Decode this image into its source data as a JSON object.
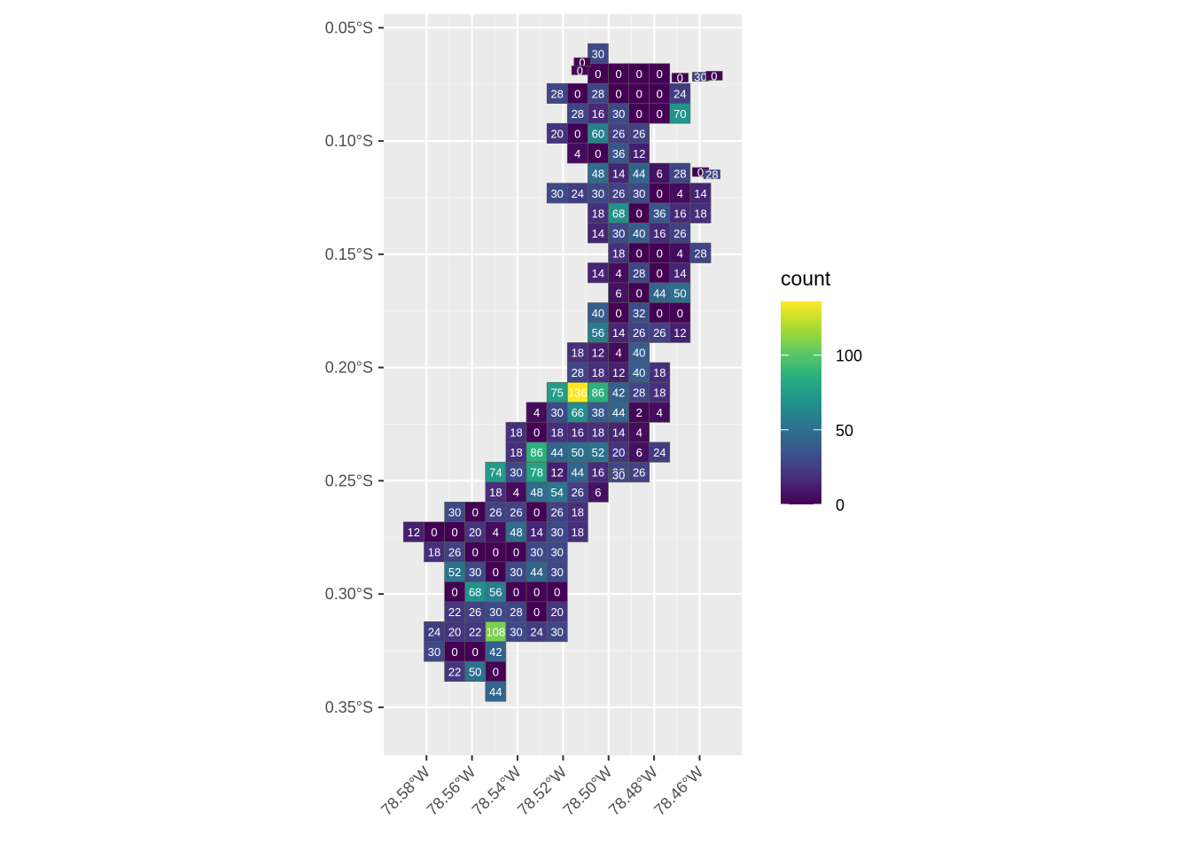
{
  "chart_data": {
    "type": "heatmap",
    "title": "",
    "xlabel": "",
    "ylabel": "",
    "x_ticks": [
      {
        "value": -78.58,
        "label": "78.58°W"
      },
      {
        "value": -78.56,
        "label": "78.56°W"
      },
      {
        "value": -78.54,
        "label": "78.54°W"
      },
      {
        "value": -78.52,
        "label": "78.52°W"
      },
      {
        "value": -78.5,
        "label": "78.50°W"
      },
      {
        "value": -78.48,
        "label": "78.48°W"
      },
      {
        "value": -78.46,
        "label": "78.46°W"
      }
    ],
    "y_ticks": [
      {
        "value": -0.05,
        "label": "0.05°S"
      },
      {
        "value": -0.1,
        "label": "0.10°S"
      },
      {
        "value": -0.15,
        "label": "0.15°S"
      },
      {
        "value": -0.2,
        "label": "0.20°S"
      },
      {
        "value": -0.25,
        "label": "0.25°S"
      },
      {
        "value": -0.3,
        "label": "0.30°S"
      },
      {
        "value": -0.35,
        "label": "0.35°S"
      }
    ],
    "xlim": [
      -78.5988,
      -78.4415
    ],
    "ylim": [
      -0.3712,
      -0.044
    ],
    "grid": true,
    "legend": {
      "title": "count",
      "position": "right",
      "min": 0,
      "max": 136,
      "ticks": [
        0,
        50,
        100
      ],
      "colors": [
        "#440154",
        "#472d7b",
        "#3b528b",
        "#2c728e",
        "#21918c",
        "#28ae80",
        "#5ec962",
        "#addc30",
        "#fde725"
      ]
    },
    "cells": [
      {
        "lon": -78.5046,
        "lat": -0.0614,
        "count": 30
      },
      {
        "lon": -78.5046,
        "lat": -0.0702,
        "count": 0
      },
      {
        "lon": -78.4956,
        "lat": -0.0702,
        "count": 0
      },
      {
        "lon": -78.4866,
        "lat": -0.0702,
        "count": 0
      },
      {
        "lon": -78.4776,
        "lat": -0.0702,
        "count": 0
      },
      {
        "lon": -78.5226,
        "lat": -0.079,
        "count": 28
      },
      {
        "lon": -78.5136,
        "lat": -0.079,
        "count": 0
      },
      {
        "lon": -78.5046,
        "lat": -0.079,
        "count": 28
      },
      {
        "lon": -78.4956,
        "lat": -0.079,
        "count": 0
      },
      {
        "lon": -78.4866,
        "lat": -0.079,
        "count": 0
      },
      {
        "lon": -78.4776,
        "lat": -0.079,
        "count": 0
      },
      {
        "lon": -78.4686,
        "lat": -0.079,
        "count": 24
      },
      {
        "lon": -78.5136,
        "lat": -0.0878,
        "count": 28
      },
      {
        "lon": -78.5046,
        "lat": -0.0878,
        "count": 16
      },
      {
        "lon": -78.4956,
        "lat": -0.0878,
        "count": 30
      },
      {
        "lon": -78.4866,
        "lat": -0.0878,
        "count": 0
      },
      {
        "lon": -78.4776,
        "lat": -0.0878,
        "count": 0
      },
      {
        "lon": -78.4686,
        "lat": -0.0878,
        "count": 70
      },
      {
        "lon": -78.5226,
        "lat": -0.0966,
        "count": 20
      },
      {
        "lon": -78.5136,
        "lat": -0.0966,
        "count": 0
      },
      {
        "lon": -78.5046,
        "lat": -0.0966,
        "count": 60
      },
      {
        "lon": -78.4956,
        "lat": -0.0966,
        "count": 26
      },
      {
        "lon": -78.4866,
        "lat": -0.0966,
        "count": 26
      },
      {
        "lon": -78.5136,
        "lat": -0.1054,
        "count": 4
      },
      {
        "lon": -78.5046,
        "lat": -0.1054,
        "count": 0
      },
      {
        "lon": -78.4956,
        "lat": -0.1054,
        "count": 36
      },
      {
        "lon": -78.4866,
        "lat": -0.1054,
        "count": 12
      },
      {
        "lon": -78.5046,
        "lat": -0.1142,
        "count": 48
      },
      {
        "lon": -78.4956,
        "lat": -0.1142,
        "count": 14
      },
      {
        "lon": -78.4866,
        "lat": -0.1142,
        "count": 44
      },
      {
        "lon": -78.4776,
        "lat": -0.1142,
        "count": 6
      },
      {
        "lon": -78.4686,
        "lat": -0.1142,
        "count": 28
      },
      {
        "lon": -78.5226,
        "lat": -0.123,
        "count": 30
      },
      {
        "lon": -78.5136,
        "lat": -0.123,
        "count": 24
      },
      {
        "lon": -78.5046,
        "lat": -0.123,
        "count": 30
      },
      {
        "lon": -78.4956,
        "lat": -0.123,
        "count": 26
      },
      {
        "lon": -78.4866,
        "lat": -0.123,
        "count": 30
      },
      {
        "lon": -78.4776,
        "lat": -0.123,
        "count": 0
      },
      {
        "lon": -78.4686,
        "lat": -0.123,
        "count": 4
      },
      {
        "lon": -78.4596,
        "lat": -0.123,
        "count": 14
      },
      {
        "lon": -78.5046,
        "lat": -0.1318,
        "count": 18
      },
      {
        "lon": -78.4956,
        "lat": -0.1318,
        "count": 68
      },
      {
        "lon": -78.4866,
        "lat": -0.1318,
        "count": 0
      },
      {
        "lon": -78.4776,
        "lat": -0.1318,
        "count": 36
      },
      {
        "lon": -78.4686,
        "lat": -0.1318,
        "count": 16
      },
      {
        "lon": -78.4596,
        "lat": -0.1318,
        "count": 18
      },
      {
        "lon": -78.5046,
        "lat": -0.1406,
        "count": 14
      },
      {
        "lon": -78.4956,
        "lat": -0.1406,
        "count": 30
      },
      {
        "lon": -78.4866,
        "lat": -0.1406,
        "count": 40
      },
      {
        "lon": -78.4776,
        "lat": -0.1406,
        "count": 16
      },
      {
        "lon": -78.4686,
        "lat": -0.1406,
        "count": 26
      },
      {
        "lon": -78.4956,
        "lat": -0.1494,
        "count": 18
      },
      {
        "lon": -78.4866,
        "lat": -0.1494,
        "count": 0
      },
      {
        "lon": -78.4776,
        "lat": -0.1494,
        "count": 0
      },
      {
        "lon": -78.4686,
        "lat": -0.1494,
        "count": 4
      },
      {
        "lon": -78.4596,
        "lat": -0.1494,
        "count": 28
      },
      {
        "lon": -78.5046,
        "lat": -0.1582,
        "count": 14
      },
      {
        "lon": -78.4956,
        "lat": -0.1582,
        "count": 4
      },
      {
        "lon": -78.4866,
        "lat": -0.1582,
        "count": 28
      },
      {
        "lon": -78.4776,
        "lat": -0.1582,
        "count": 0
      },
      {
        "lon": -78.4686,
        "lat": -0.1582,
        "count": 14
      },
      {
        "lon": -78.4956,
        "lat": -0.167,
        "count": 6
      },
      {
        "lon": -78.4866,
        "lat": -0.167,
        "count": 0
      },
      {
        "lon": -78.4776,
        "lat": -0.167,
        "count": 44
      },
      {
        "lon": -78.4686,
        "lat": -0.167,
        "count": 50
      },
      {
        "lon": -78.5046,
        "lat": -0.1758,
        "count": 40
      },
      {
        "lon": -78.4956,
        "lat": -0.1758,
        "count": 0
      },
      {
        "lon": -78.4866,
        "lat": -0.1758,
        "count": 32
      },
      {
        "lon": -78.4776,
        "lat": -0.1758,
        "count": 0
      },
      {
        "lon": -78.4686,
        "lat": -0.1758,
        "count": 0
      },
      {
        "lon": -78.5046,
        "lat": -0.1846,
        "count": 56
      },
      {
        "lon": -78.4956,
        "lat": -0.1846,
        "count": 14
      },
      {
        "lon": -78.4866,
        "lat": -0.1846,
        "count": 26
      },
      {
        "lon": -78.4776,
        "lat": -0.1846,
        "count": 26
      },
      {
        "lon": -78.4686,
        "lat": -0.1846,
        "count": 12
      },
      {
        "lon": -78.5136,
        "lat": -0.1934,
        "count": 18
      },
      {
        "lon": -78.5046,
        "lat": -0.1934,
        "count": 12
      },
      {
        "lon": -78.4956,
        "lat": -0.1934,
        "count": 4
      },
      {
        "lon": -78.4866,
        "lat": -0.1934,
        "count": 40
      },
      {
        "lon": -78.5136,
        "lat": -0.2022,
        "count": 28
      },
      {
        "lon": -78.5046,
        "lat": -0.2022,
        "count": 18
      },
      {
        "lon": -78.4956,
        "lat": -0.2022,
        "count": 12
      },
      {
        "lon": -78.4866,
        "lat": -0.2022,
        "count": 40
      },
      {
        "lon": -78.4776,
        "lat": -0.2022,
        "count": 18
      },
      {
        "lon": -78.5226,
        "lat": -0.211,
        "count": 75
      },
      {
        "lon": -78.5136,
        "lat": -0.211,
        "count": 136
      },
      {
        "lon": -78.5046,
        "lat": -0.211,
        "count": 86
      },
      {
        "lon": -78.4956,
        "lat": -0.211,
        "count": 42
      },
      {
        "lon": -78.4866,
        "lat": -0.211,
        "count": 28
      },
      {
        "lon": -78.4776,
        "lat": -0.211,
        "count": 18
      },
      {
        "lon": -78.5316,
        "lat": -0.2198,
        "count": 4
      },
      {
        "lon": -78.5226,
        "lat": -0.2198,
        "count": 30
      },
      {
        "lon": -78.5136,
        "lat": -0.2198,
        "count": 66
      },
      {
        "lon": -78.5046,
        "lat": -0.2198,
        "count": 38
      },
      {
        "lon": -78.4956,
        "lat": -0.2198,
        "count": 44
      },
      {
        "lon": -78.4866,
        "lat": -0.2198,
        "count": 2
      },
      {
        "lon": -78.4776,
        "lat": -0.2198,
        "count": 4
      },
      {
        "lon": -78.5406,
        "lat": -0.2286,
        "count": 18
      },
      {
        "lon": -78.5316,
        "lat": -0.2286,
        "count": 0
      },
      {
        "lon": -78.5226,
        "lat": -0.2286,
        "count": 18
      },
      {
        "lon": -78.5136,
        "lat": -0.2286,
        "count": 16
      },
      {
        "lon": -78.5046,
        "lat": -0.2286,
        "count": 18
      },
      {
        "lon": -78.4956,
        "lat": -0.2286,
        "count": 14
      },
      {
        "lon": -78.4866,
        "lat": -0.2286,
        "count": 4
      },
      {
        "lon": -78.5406,
        "lat": -0.2374,
        "count": 18
      },
      {
        "lon": -78.5316,
        "lat": -0.2374,
        "count": 86
      },
      {
        "lon": -78.5226,
        "lat": -0.2374,
        "count": 44
      },
      {
        "lon": -78.5136,
        "lat": -0.2374,
        "count": 50
      },
      {
        "lon": -78.5046,
        "lat": -0.2374,
        "count": 52
      },
      {
        "lon": -78.4956,
        "lat": -0.2374,
        "count": 20
      },
      {
        "lon": -78.4866,
        "lat": -0.2374,
        "count": 6
      },
      {
        "lon": -78.4776,
        "lat": -0.2374,
        "count": 24
      },
      {
        "lon": -78.5496,
        "lat": -0.2462,
        "count": 74
      },
      {
        "lon": -78.5406,
        "lat": -0.2462,
        "count": 30
      },
      {
        "lon": -78.5316,
        "lat": -0.2462,
        "count": 78
      },
      {
        "lon": -78.5226,
        "lat": -0.2462,
        "count": 12
      },
      {
        "lon": -78.5136,
        "lat": -0.2462,
        "count": 44
      },
      {
        "lon": -78.5046,
        "lat": -0.2462,
        "count": 16
      },
      {
        "lon": -78.4956,
        "lat": -0.2462,
        "count": 30
      },
      {
        "lon": -78.4866,
        "lat": -0.2462,
        "count": 26
      },
      {
        "lon": -78.5496,
        "lat": -0.255,
        "count": 18
      },
      {
        "lon": -78.5406,
        "lat": -0.255,
        "count": 4
      },
      {
        "lon": -78.5316,
        "lat": -0.255,
        "count": 48
      },
      {
        "lon": -78.5226,
        "lat": -0.255,
        "count": 54
      },
      {
        "lon": -78.5136,
        "lat": -0.255,
        "count": 26
      },
      {
        "lon": -78.5046,
        "lat": -0.255,
        "count": 6
      },
      {
        "lon": -78.5676,
        "lat": -0.2638,
        "count": 30
      },
      {
        "lon": -78.5586,
        "lat": -0.2638,
        "count": 0
      },
      {
        "lon": -78.5496,
        "lat": -0.2638,
        "count": 26
      },
      {
        "lon": -78.5406,
        "lat": -0.2638,
        "count": 26
      },
      {
        "lon": -78.5316,
        "lat": -0.2638,
        "count": 0
      },
      {
        "lon": -78.5226,
        "lat": -0.2638,
        "count": 26
      },
      {
        "lon": -78.5136,
        "lat": -0.2638,
        "count": 18
      },
      {
        "lon": -78.5856,
        "lat": -0.2726,
        "count": 12
      },
      {
        "lon": -78.5766,
        "lat": -0.2726,
        "count": 0
      },
      {
        "lon": -78.5676,
        "lat": -0.2726,
        "count": 0
      },
      {
        "lon": -78.5586,
        "lat": -0.2726,
        "count": 20
      },
      {
        "lon": -78.5496,
        "lat": -0.2726,
        "count": 4
      },
      {
        "lon": -78.5406,
        "lat": -0.2726,
        "count": 48
      },
      {
        "lon": -78.5316,
        "lat": -0.2726,
        "count": 14
      },
      {
        "lon": -78.5226,
        "lat": -0.2726,
        "count": 30
      },
      {
        "lon": -78.5136,
        "lat": -0.2726,
        "count": 18
      },
      {
        "lon": -78.5766,
        "lat": -0.2814,
        "count": 18
      },
      {
        "lon": -78.5676,
        "lat": -0.2814,
        "count": 26
      },
      {
        "lon": -78.5586,
        "lat": -0.2814,
        "count": 0
      },
      {
        "lon": -78.5496,
        "lat": -0.2814,
        "count": 0
      },
      {
        "lon": -78.5406,
        "lat": -0.2814,
        "count": 0
      },
      {
        "lon": -78.5316,
        "lat": -0.2814,
        "count": 30
      },
      {
        "lon": -78.5226,
        "lat": -0.2814,
        "count": 30
      },
      {
        "lon": -78.5676,
        "lat": -0.2902,
        "count": 52
      },
      {
        "lon": -78.5586,
        "lat": -0.2902,
        "count": 30
      },
      {
        "lon": -78.5496,
        "lat": -0.2902,
        "count": 0
      },
      {
        "lon": -78.5406,
        "lat": -0.2902,
        "count": 30
      },
      {
        "lon": -78.5316,
        "lat": -0.2902,
        "count": 44
      },
      {
        "lon": -78.5226,
        "lat": -0.2902,
        "count": 30
      },
      {
        "lon": -78.5676,
        "lat": -0.299,
        "count": 0
      },
      {
        "lon": -78.5586,
        "lat": -0.299,
        "count": 68
      },
      {
        "lon": -78.5496,
        "lat": -0.299,
        "count": 56
      },
      {
        "lon": -78.5406,
        "lat": -0.299,
        "count": 0
      },
      {
        "lon": -78.5316,
        "lat": -0.299,
        "count": 0
      },
      {
        "lon": -78.5226,
        "lat": -0.299,
        "count": 0
      },
      {
        "lon": -78.5676,
        "lat": -0.3078,
        "count": 22
      },
      {
        "lon": -78.5586,
        "lat": -0.3078,
        "count": 26
      },
      {
        "lon": -78.5496,
        "lat": -0.3078,
        "count": 30
      },
      {
        "lon": -78.5406,
        "lat": -0.3078,
        "count": 28
      },
      {
        "lon": -78.5316,
        "lat": -0.3078,
        "count": 0
      },
      {
        "lon": -78.5226,
        "lat": -0.3078,
        "count": 20
      },
      {
        "lon": -78.5766,
        "lat": -0.3166,
        "count": 24
      },
      {
        "lon": -78.5676,
        "lat": -0.3166,
        "count": 20
      },
      {
        "lon": -78.5586,
        "lat": -0.3166,
        "count": 22
      },
      {
        "lon": -78.5496,
        "lat": -0.3166,
        "count": 108
      },
      {
        "lon": -78.5406,
        "lat": -0.3166,
        "count": 30
      },
      {
        "lon": -78.5316,
        "lat": -0.3166,
        "count": 24
      },
      {
        "lon": -78.5226,
        "lat": -0.3166,
        "count": 30
      },
      {
        "lon": -78.5766,
        "lat": -0.3254,
        "count": 30
      },
      {
        "lon": -78.5676,
        "lat": -0.3254,
        "count": 0
      },
      {
        "lon": -78.5586,
        "lat": -0.3254,
        "count": 0
      },
      {
        "lon": -78.5496,
        "lat": -0.3254,
        "count": 42
      },
      {
        "lon": -78.5676,
        "lat": -0.3342,
        "count": 22
      },
      {
        "lon": -78.5586,
        "lat": -0.3342,
        "count": 50
      },
      {
        "lon": -78.5496,
        "lat": -0.3342,
        "count": 0
      },
      {
        "lon": -78.5496,
        "lat": -0.343,
        "count": 44
      }
    ],
    "edge_cells": [
      {
        "lon": -78.4686,
        "lat": -0.072,
        "count": 0
      },
      {
        "lon": -78.4596,
        "lat": -0.0716,
        "count": 30
      },
      {
        "lon": -78.4536,
        "lat": -0.0712,
        "count": 0
      },
      {
        "lon": -78.4596,
        "lat": -0.1137,
        "count": 0
      },
      {
        "lon": -78.4546,
        "lat": -0.1147,
        "count": 28
      },
      {
        "lon": -78.5116,
        "lat": -0.0652,
        "count": 0
      },
      {
        "lon": -78.5126,
        "lat": -0.0688,
        "count": 0
      },
      {
        "lon": -78.4956,
        "lat": -0.2474,
        "count": 30
      }
    ]
  }
}
